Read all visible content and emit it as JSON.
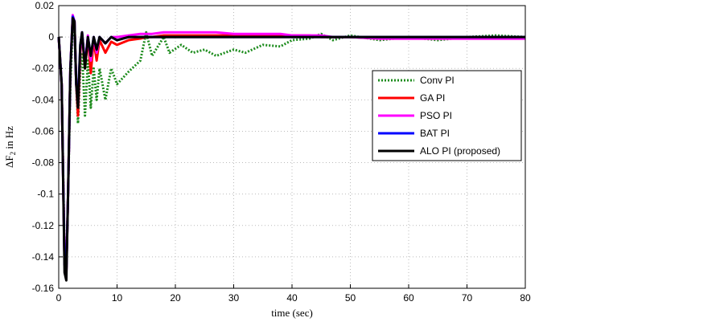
{
  "chart_data": {
    "type": "line",
    "xlabel": "time (sec)",
    "ylabel": [
      "ΔF",
      "2",
      " in Hz"
    ],
    "x": [
      0,
      0.5,
      1,
      1.3,
      1.6,
      2,
      2.4,
      2.7,
      3,
      3.3,
      3.7,
      4,
      4.5,
      5,
      5.5,
      6,
      6.5,
      7,
      8,
      9,
      10,
      12,
      14,
      15,
      16,
      18,
      19,
      21,
      23,
      25,
      27,
      30,
      32,
      35,
      38,
      40,
      43,
      45,
      47,
      50,
      55,
      60,
      65,
      70,
      75,
      80
    ],
    "xlim": [
      0,
      80
    ],
    "xticks": [
      0,
      10,
      20,
      30,
      40,
      50,
      60,
      70,
      80
    ],
    "ylim": [
      -0.16,
      0.02
    ],
    "yticks": [
      0.02,
      0,
      -0.02,
      -0.04,
      -0.06,
      -0.08,
      -0.1,
      -0.12,
      -0.14,
      -0.16
    ],
    "grid": true,
    "legend": "upper right",
    "series": [
      {
        "name": "Conv PI",
        "color": "#1e8c1e",
        "dashed": true,
        "values": [
          0,
          -0.03,
          -0.14,
          -0.15,
          -0.1,
          -0.03,
          0.008,
          0.005,
          -0.03,
          -0.055,
          -0.02,
          -0.01,
          -0.05,
          -0.015,
          -0.045,
          -0.02,
          -0.04,
          -0.02,
          -0.04,
          -0.02,
          -0.03,
          -0.022,
          -0.015,
          0.003,
          -0.012,
          0,
          -0.01,
          -0.005,
          -0.01,
          -0.008,
          -0.012,
          -0.008,
          -0.01,
          -0.005,
          -0.006,
          -0.002,
          -0.001,
          0.002,
          -0.002,
          0.001,
          -0.002,
          0,
          -0.002,
          0,
          0.001,
          0
        ]
      },
      {
        "name": "GA PI",
        "color": "#ff0000",
        "values": [
          0,
          -0.03,
          -0.145,
          -0.15,
          -0.1,
          -0.02,
          0.013,
          0.01,
          -0.03,
          -0.05,
          -0.01,
          0.002,
          -0.02,
          0,
          -0.023,
          -0.002,
          -0.015,
          -0.002,
          -0.01,
          -0.003,
          -0.005,
          -0.002,
          -0.001,
          0,
          0,
          0.001,
          0.001,
          0.001,
          0.001,
          0.001,
          0.001,
          0.001,
          0.001,
          0.001,
          0.001,
          0.001,
          0.001,
          0,
          0,
          0,
          -0.001,
          -0.001,
          -0.001,
          -0.001,
          -0.001,
          -0.001
        ]
      },
      {
        "name": "PSO PI",
        "color": "#ff00ff",
        "values": [
          0,
          -0.03,
          -0.145,
          -0.152,
          -0.1,
          -0.02,
          0.014,
          0.01,
          -0.03,
          -0.045,
          -0.008,
          0.003,
          -0.018,
          0.001,
          -0.015,
          0,
          -0.01,
          0,
          -0.004,
          0,
          0,
          0.001,
          0.002,
          0.002,
          0.002,
          0.003,
          0.003,
          0.003,
          0.003,
          0.003,
          0.003,
          0.002,
          0.002,
          0.002,
          0.002,
          0.001,
          0.001,
          0.001,
          0,
          0,
          -0.001,
          -0.001,
          -0.001,
          -0.001,
          -0.001,
          -0.001
        ]
      },
      {
        "name": "BAT PI",
        "color": "#0000ff",
        "values": [
          0,
          -0.03,
          -0.145,
          -0.15,
          -0.1,
          -0.02,
          0.013,
          0.01,
          -0.03,
          -0.04,
          -0.005,
          0.003,
          -0.018,
          0,
          -0.012,
          0,
          -0.008,
          0,
          -0.004,
          0,
          -0.002,
          0,
          0,
          0,
          0,
          0,
          0,
          0,
          0,
          0,
          0,
          0,
          0,
          0,
          0,
          0,
          0,
          0,
          0,
          0,
          0,
          0,
          0,
          0,
          0,
          0
        ]
      },
      {
        "name": "ALO PI (proposed)",
        "color": "#000000",
        "values": [
          0,
          -0.03,
          -0.15,
          -0.155,
          -0.1,
          -0.02,
          0.012,
          0.01,
          -0.03,
          -0.045,
          -0.005,
          0.003,
          -0.02,
          0,
          -0.012,
          0,
          -0.008,
          0,
          -0.004,
          0,
          -0.002,
          0,
          0,
          0,
          0,
          0,
          0,
          0,
          0,
          0,
          0,
          0,
          0,
          0,
          0,
          0,
          0,
          0,
          0,
          0,
          0,
          0,
          0,
          0,
          0,
          0
        ]
      }
    ]
  }
}
